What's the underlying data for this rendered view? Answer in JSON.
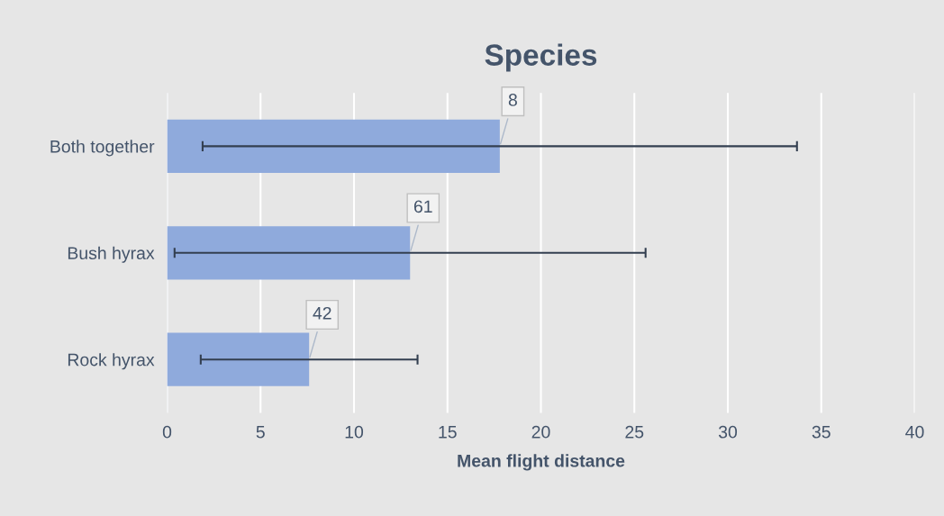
{
  "chart_data": {
    "type": "bar",
    "orientation": "horizontal",
    "title": "Species",
    "xlabel": "Mean flight distance",
    "categories": [
      "Both together",
      "Bush hyrax",
      "Rock hyrax"
    ],
    "values": [
      17.8,
      13.0,
      7.6
    ],
    "errors": [
      15.9,
      12.6,
      5.8
    ],
    "color": "#8faadc",
    "xlim": [
      0,
      40
    ],
    "xticks": [
      0,
      5,
      10,
      15,
      20,
      25,
      30,
      35,
      40
    ],
    "grid": "x",
    "annotations": [
      {
        "text": "8",
        "x": 17.8,
        "y": "Both together"
      },
      {
        "text": "61",
        "x": 13.0,
        "y": "Bush hyrax"
      },
      {
        "text": "42",
        "x": 7.6,
        "y": "Rock hyrax"
      }
    ]
  }
}
